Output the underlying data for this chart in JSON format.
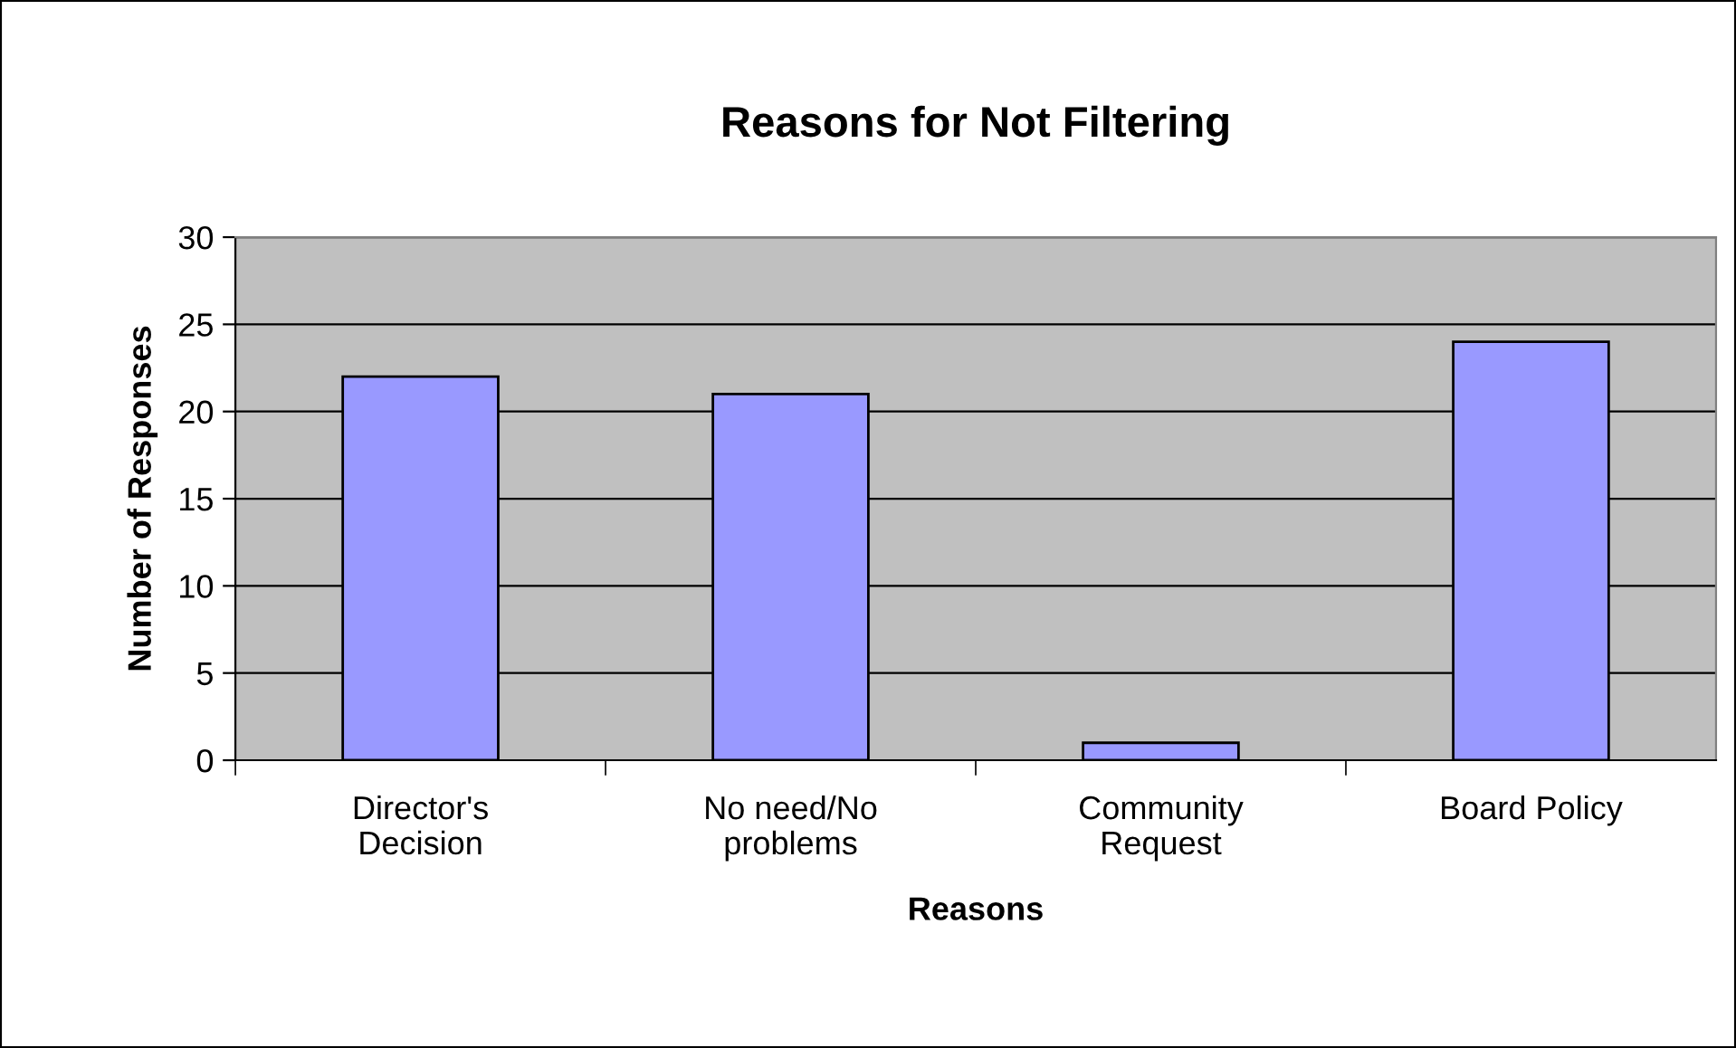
{
  "chart_data": {
    "type": "bar",
    "title": "Reasons for Not Filtering",
    "xlabel": "Reasons",
    "ylabel": "Number of Responses",
    "categories": [
      "Director's\nDecision",
      "No need/No\nproblems",
      "Community\nRequest",
      "Board Policy"
    ],
    "values": [
      22,
      21,
      1,
      24
    ],
    "color": "#9999ff",
    "ylim": [
      0,
      30
    ],
    "yticks": [
      0,
      5,
      10,
      15,
      20,
      25,
      30
    ],
    "grid": "y",
    "legend": false
  }
}
